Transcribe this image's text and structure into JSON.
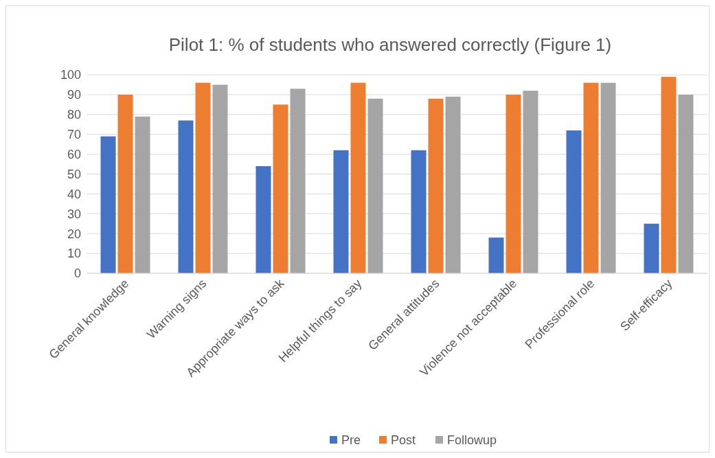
{
  "chart_data": {
    "type": "bar",
    "title": "Pilot 1: % of students who answered correctly (Figure 1)",
    "categories": [
      "General knowledge",
      "Warning signs",
      "Appropriate ways to ask",
      "Helpful things to say",
      "General attitudes",
      "Violence not acceptable",
      "Professional role",
      "Self-efficacy"
    ],
    "series": [
      {
        "name": "Pre",
        "color": "#4472c4",
        "values": [
          69,
          77,
          54,
          62,
          62,
          18,
          72,
          25
        ]
      },
      {
        "name": "Post",
        "color": "#ed7d31",
        "values": [
          90,
          96,
          85,
          96,
          88,
          90,
          96,
          99
        ]
      },
      {
        "name": "Followup",
        "color": "#a5a5a5",
        "values": [
          79,
          95,
          93,
          88,
          89,
          92,
          96,
          90
        ]
      }
    ],
    "ylim": [
      0,
      100
    ],
    "yticks": [
      0,
      10,
      20,
      30,
      40,
      50,
      60,
      70,
      80,
      90,
      100
    ],
    "grid": "y",
    "legend": "bottom"
  }
}
